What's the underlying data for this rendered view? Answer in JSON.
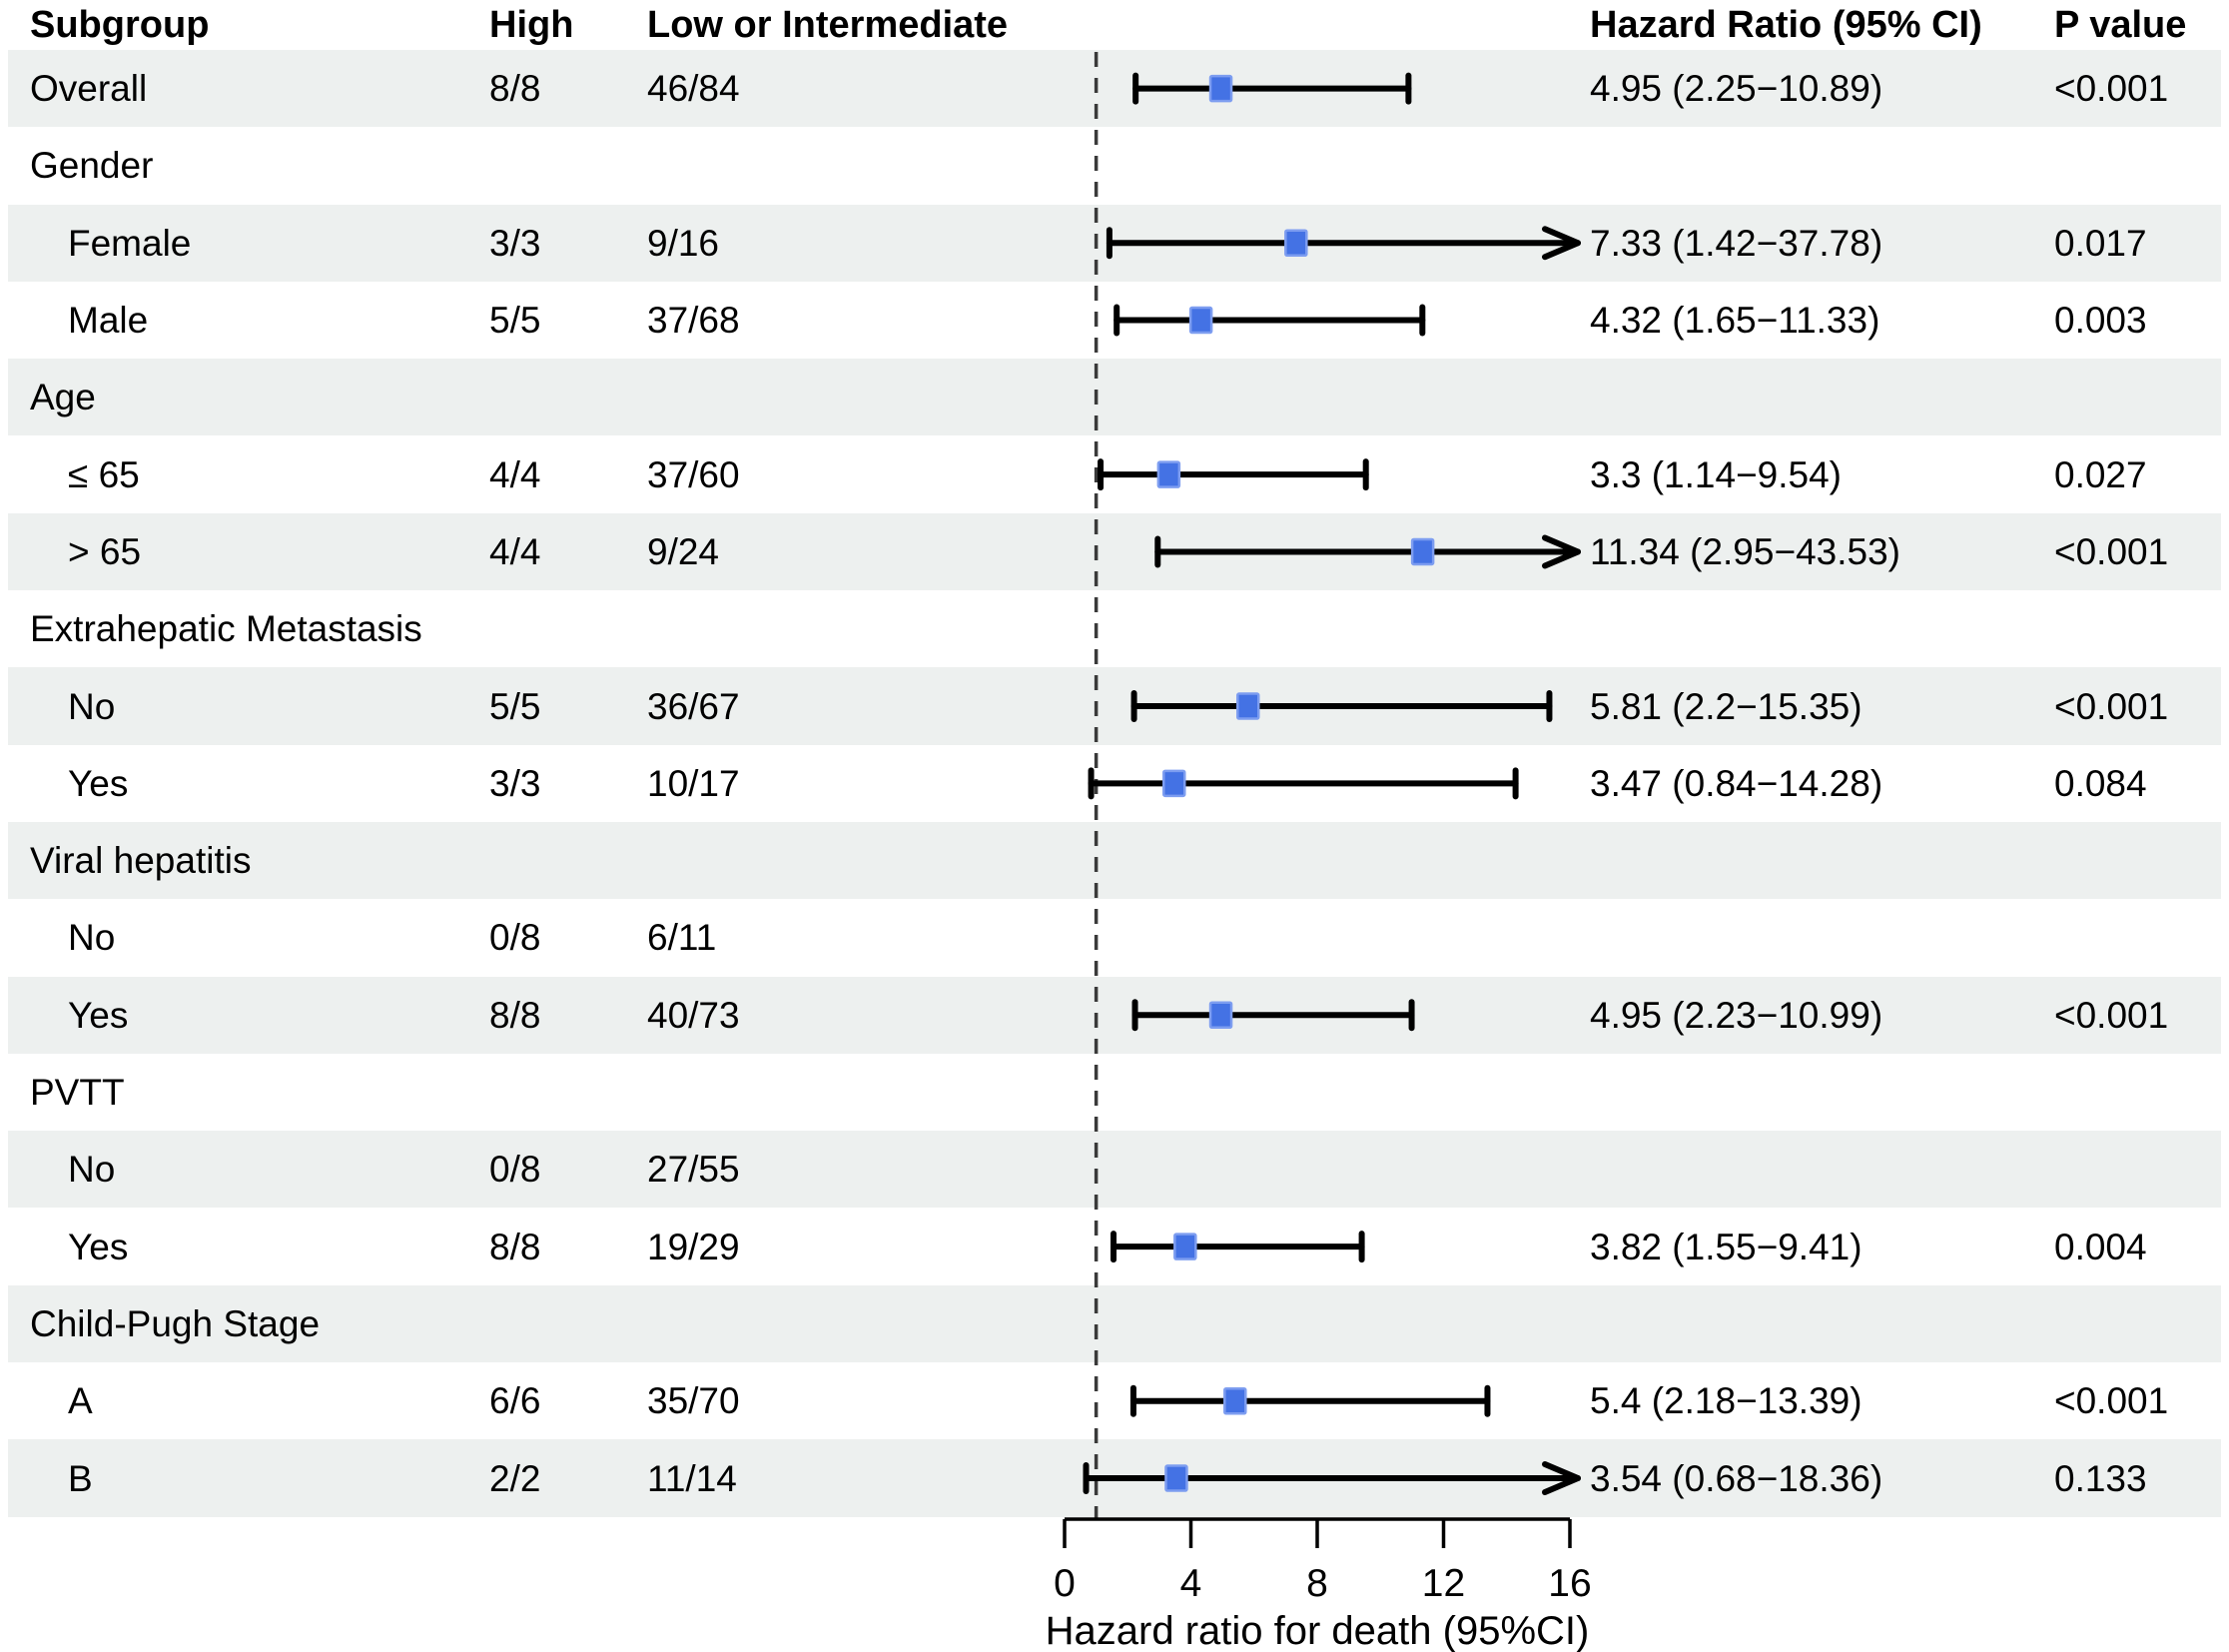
{
  "header": {
    "subgroup": "Subgroup",
    "high": "High",
    "low": "Low or Intermediate",
    "hazard": "Hazard Ratio (95% CI)",
    "p": "P value"
  },
  "colors": {
    "row_shade": "#edf0ef",
    "marker_fill": "#4472e4",
    "marker_edge": "#7d9df0",
    "line": "#000000",
    "ref_line": "#3a3a3a"
  },
  "chart_data": {
    "type": "forest",
    "title": "",
    "xlabel": "Hazard ratio for death (95%CI)",
    "xlim": [
      0,
      16
    ],
    "ticks": [
      0,
      4,
      8,
      12,
      16
    ],
    "reference_line": 1,
    "columns": [
      "Subgroup",
      "High",
      "Low or Intermediate",
      "Hazard Ratio (95% CI)",
      "P value"
    ],
    "rows": [
      {
        "label": "Overall",
        "type": "data",
        "indent": false,
        "shaded": true,
        "high": "8/8",
        "low": "46/84",
        "hr": 4.95,
        "ci_low": 2.25,
        "ci_high": 10.89,
        "arrow": false,
        "hr_text": "4.95 (2.25−10.89)",
        "p": "<0.001"
      },
      {
        "label": "Gender",
        "type": "group",
        "shaded": false
      },
      {
        "label": "Female",
        "type": "data",
        "indent": true,
        "shaded": true,
        "high": "3/3",
        "low": "9/16",
        "hr": 7.33,
        "ci_low": 1.42,
        "ci_high": 37.78,
        "arrow": true,
        "hr_text": "7.33 (1.42−37.78)",
        "p": "0.017"
      },
      {
        "label": "Male",
        "type": "data",
        "indent": true,
        "shaded": false,
        "high": "5/5",
        "low": "37/68",
        "hr": 4.32,
        "ci_low": 1.65,
        "ci_high": 11.33,
        "arrow": false,
        "hr_text": "4.32 (1.65−11.33)",
        "p": "0.003"
      },
      {
        "label": "Age",
        "type": "group",
        "shaded": true
      },
      {
        "label": "≤ 65",
        "type": "data",
        "indent": true,
        "shaded": false,
        "high": "4/4",
        "low": "37/60",
        "hr": 3.3,
        "ci_low": 1.14,
        "ci_high": 9.54,
        "arrow": false,
        "hr_text": "3.3 (1.14−9.54)",
        "p": "0.027"
      },
      {
        "label": "> 65",
        "type": "data",
        "indent": true,
        "shaded": true,
        "high": "4/4",
        "low": "9/24",
        "hr": 11.34,
        "ci_low": 2.95,
        "ci_high": 43.53,
        "arrow": true,
        "hr_text": "11.34 (2.95−43.53)",
        "p": "<0.001"
      },
      {
        "label": "Extrahepatic Metastasis",
        "type": "group",
        "shaded": false
      },
      {
        "label": "No",
        "type": "data",
        "indent": true,
        "shaded": true,
        "high": "5/5",
        "low": "36/67",
        "hr": 5.81,
        "ci_low": 2.2,
        "ci_high": 15.35,
        "arrow": false,
        "hr_text": "5.81 (2.2−15.35)",
        "p": "<0.001"
      },
      {
        "label": "Yes",
        "type": "data",
        "indent": true,
        "shaded": false,
        "high": "3/3",
        "low": "10/17",
        "hr": 3.47,
        "ci_low": 0.84,
        "ci_high": 14.28,
        "arrow": false,
        "hr_text": "3.47 (0.84−14.28)",
        "p": "0.084"
      },
      {
        "label": "Viral hepatitis",
        "type": "group",
        "shaded": true
      },
      {
        "label": "No",
        "type": "data",
        "indent": true,
        "shaded": false,
        "high": "0/8",
        "low": "6/11",
        "hr": null,
        "hr_text": "",
        "p": ""
      },
      {
        "label": "Yes",
        "type": "data",
        "indent": true,
        "shaded": true,
        "high": "8/8",
        "low": "40/73",
        "hr": 4.95,
        "ci_low": 2.23,
        "ci_high": 10.99,
        "arrow": false,
        "hr_text": "4.95 (2.23−10.99)",
        "p": "<0.001"
      },
      {
        "label": "PVTT",
        "type": "group",
        "shaded": false
      },
      {
        "label": "No",
        "type": "data",
        "indent": true,
        "shaded": true,
        "high": "0/8",
        "low": "27/55",
        "hr": null,
        "hr_text": "",
        "p": ""
      },
      {
        "label": "Yes",
        "type": "data",
        "indent": true,
        "shaded": false,
        "high": "8/8",
        "low": "19/29",
        "hr": 3.82,
        "ci_low": 1.55,
        "ci_high": 9.41,
        "arrow": false,
        "hr_text": "3.82 (1.55−9.41)",
        "p": "0.004"
      },
      {
        "label": "Child-Pugh Stage",
        "type": "group",
        "shaded": true
      },
      {
        "label": "A",
        "type": "data",
        "indent": true,
        "shaded": false,
        "high": "6/6",
        "low": "35/70",
        "hr": 5.4,
        "ci_low": 2.18,
        "ci_high": 13.39,
        "arrow": false,
        "hr_text": "5.4 (2.18−13.39)",
        "p": "<0.001"
      },
      {
        "label": "B",
        "type": "data",
        "indent": true,
        "shaded": true,
        "high": "2/2",
        "low": "11/14",
        "hr": 3.54,
        "ci_low": 0.68,
        "ci_high": 18.36,
        "arrow": true,
        "hr_text": "3.54 (0.68−18.36)",
        "p": "0.133"
      }
    ]
  }
}
